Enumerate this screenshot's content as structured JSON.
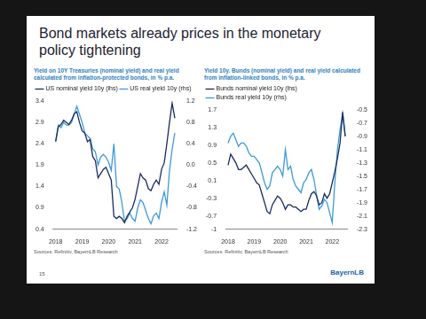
{
  "slide": {
    "title": "Bond markets already prices in the monetary policy tightening",
    "page": "15",
    "logo": "BayernLB"
  },
  "chart_data": [
    {
      "type": "line",
      "title": "Yield on 10Y Treasuries (nominal yield) and real yield calculated from inflation-protected bonds, in % p.a.",
      "annotations": [
        "Sources: Refinitiv, BayernLB Research"
      ],
      "x": [
        2018.0,
        2018.1,
        2018.2,
        2018.3,
        2018.4,
        2018.5,
        2018.6,
        2018.7,
        2018.8,
        2018.9,
        2019.0,
        2019.1,
        2019.2,
        2019.3,
        2019.4,
        2019.5,
        2019.6,
        2019.7,
        2019.8,
        2019.9,
        2020.0,
        2020.1,
        2020.2,
        2020.3,
        2020.4,
        2020.5,
        2020.6,
        2020.7,
        2020.8,
        2020.9,
        2021.0,
        2021.1,
        2021.2,
        2021.3,
        2021.4,
        2021.5,
        2021.6,
        2021.7,
        2021.8,
        2021.9,
        2022.0,
        2022.1,
        2022.2,
        2022.3,
        2022.4,
        2022.5
      ],
      "series": [
        {
          "name": "US nominal yield 10y (lhs)",
          "color": "#1a2b5e",
          "values": [
            2.45,
            2.8,
            2.85,
            2.95,
            2.9,
            2.85,
            2.95,
            3.1,
            3.15,
            2.9,
            2.7,
            2.65,
            2.45,
            2.5,
            2.1,
            2.0,
            1.6,
            1.7,
            1.8,
            1.85,
            1.7,
            1.55,
            0.7,
            0.65,
            0.7,
            0.65,
            0.55,
            0.7,
            0.8,
            0.9,
            1.1,
            1.4,
            1.7,
            1.6,
            1.55,
            1.35,
            1.3,
            1.45,
            1.55,
            1.45,
            1.8,
            1.95,
            2.4,
            2.9,
            3.35,
            3.0
          ]
        },
        {
          "name": "US real yield 10y (rhs)",
          "color": "#3d9ad6",
          "axis": "y2",
          "values": [
            0.45,
            0.75,
            0.7,
            0.8,
            0.75,
            0.75,
            0.8,
            0.95,
            1.1,
            0.95,
            0.8,
            0.6,
            0.55,
            0.5,
            0.3,
            0.25,
            0.0,
            0.15,
            0.2,
            0.15,
            0.05,
            -0.1,
            0.4,
            -0.4,
            -0.45,
            -0.7,
            -1.05,
            -1.0,
            -0.9,
            -1.0,
            -1.05,
            -0.8,
            -0.65,
            -0.7,
            -0.85,
            -1.0,
            -1.1,
            -0.95,
            -0.9,
            -1.0,
            -0.7,
            -0.5,
            -0.75,
            -0.1,
            0.3,
            0.6
          ]
        }
      ],
      "xlim": [
        2017.9,
        2022.6
      ],
      "xticks": [
        2018,
        2019,
        2020,
        2021,
        2022
      ],
      "ylim": [
        0.4,
        3.4
      ],
      "yticks": [
        0.4,
        0.9,
        1.4,
        1.9,
        2.4,
        2.9,
        3.4
      ],
      "y2lim": [
        -1.2,
        1.2
      ],
      "y2ticks": [
        -1.2,
        -0.8,
        -0.4,
        {
          "value": 0,
          "label": "0.0"
        },
        0.4,
        0.8,
        1.2
      ],
      "grid": false,
      "legend": "top left"
    },
    {
      "type": "line",
      "title": "Yield 10y. Bunds (nominal yield) and real yield calculated from inflation-linked bonds, in % p.a.",
      "annotations": [
        "Sources: Refinitiv, BayernLB Research"
      ],
      "x": [
        2018.0,
        2018.1,
        2018.2,
        2018.3,
        2018.4,
        2018.5,
        2018.6,
        2018.7,
        2018.8,
        2018.9,
        2019.0,
        2019.1,
        2019.2,
        2019.3,
        2019.4,
        2019.5,
        2019.6,
        2019.7,
        2019.8,
        2019.9,
        2020.0,
        2020.1,
        2020.2,
        2020.3,
        2020.4,
        2020.5,
        2020.6,
        2020.7,
        2020.8,
        2020.9,
        2021.0,
        2021.1,
        2021.2,
        2021.3,
        2021.4,
        2021.5,
        2021.6,
        2021.7,
        2021.8,
        2021.9,
        2022.0,
        2022.1,
        2022.2,
        2022.3,
        2022.4,
        2022.5
      ],
      "series": [
        {
          "name": "Bunds nominal yield 10y (lhs)",
          "color": "#1a2b5e",
          "values": [
            0.45,
            0.7,
            0.6,
            0.5,
            0.35,
            0.35,
            0.4,
            0.45,
            0.35,
            0.25,
            0.15,
            0.05,
            0.0,
            -0.2,
            -0.4,
            -0.6,
            -0.65,
            -0.45,
            -0.35,
            -0.25,
            -0.3,
            -0.4,
            -0.55,
            -0.45,
            -0.45,
            -0.5,
            -0.5,
            -0.55,
            -0.6,
            -0.55,
            -0.55,
            -0.35,
            -0.2,
            -0.15,
            -0.25,
            -0.45,
            -0.4,
            -0.2,
            -0.3,
            -0.2,
            0.05,
            0.3,
            0.6,
            0.95,
            1.65,
            1.1
          ]
        },
        {
          "name": "Bunds real yield 10y (rhs)",
          "color": "#3d9ad6",
          "axis": "y2",
          "values": [
            -1.0,
            -0.9,
            -0.85,
            -0.95,
            -1.05,
            -1.0,
            -1.0,
            -1.05,
            -1.15,
            -1.2,
            -1.2,
            -1.25,
            -1.3,
            -1.45,
            -1.6,
            -1.7,
            -1.65,
            -1.45,
            -1.4,
            -1.35,
            -1.4,
            -1.5,
            -1.1,
            -1.4,
            -1.35,
            -1.55,
            -1.65,
            -1.7,
            -1.75,
            -1.6,
            -1.55,
            -1.45,
            -1.4,
            -1.55,
            -1.8,
            -2.0,
            -1.95,
            -1.85,
            -1.9,
            -2.05,
            -2.2,
            -1.6,
            -1.1,
            -0.8,
            -0.55,
            -0.9
          ]
        }
      ],
      "xlim": [
        2017.9,
        2022.6
      ],
      "xticks": [
        2018,
        2019,
        2020,
        2021,
        2022
      ],
      "ylim": [
        -1.0,
        1.7
      ],
      "yticks": [
        -1.0,
        -0.7,
        -0.3,
        0.1,
        0.5,
        0.9,
        1.3,
        1.7
      ],
      "y2lim": [
        -2.3,
        -0.5
      ],
      "y2ticks": [
        -2.3,
        -2.1,
        -1.9,
        -1.7,
        -1.5,
        -1.3,
        -1.1,
        -0.9,
        -0.7,
        -0.5
      ],
      "grid": false,
      "legend": "top left"
    }
  ]
}
